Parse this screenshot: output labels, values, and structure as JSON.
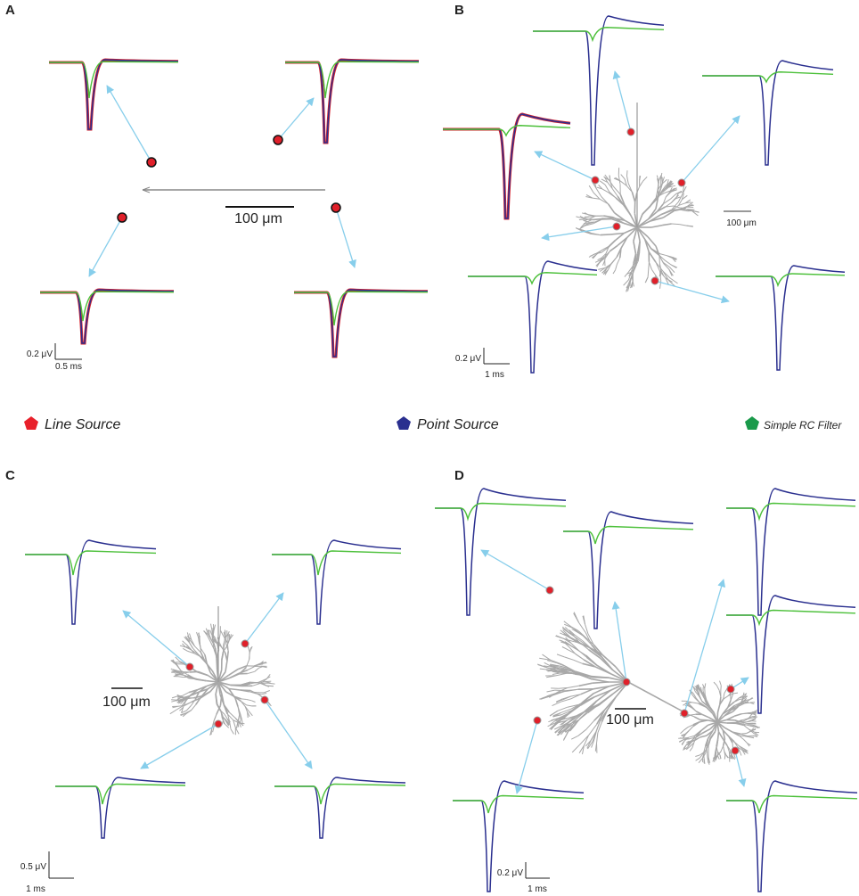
{
  "panels": [
    {
      "label": "A",
      "length_scale": "100 μm",
      "voltage_scale": "0.2 μV",
      "time_scale": "0.5 ms"
    },
    {
      "label": "B",
      "length_scale": "100 μm",
      "voltage_scale": "0.2 μV",
      "time_scale": "1 ms"
    },
    {
      "label": "C",
      "length_scale": "100 μm",
      "voltage_scale": "0.5 μV",
      "time_scale": "1 ms"
    },
    {
      "label": "D",
      "length_scale": "100 μm",
      "voltage_scale": "0.2 μV",
      "time_scale": "1 ms"
    }
  ],
  "legend": [
    "Line Source",
    "Point Source",
    "Simple RC Filter"
  ]
}
